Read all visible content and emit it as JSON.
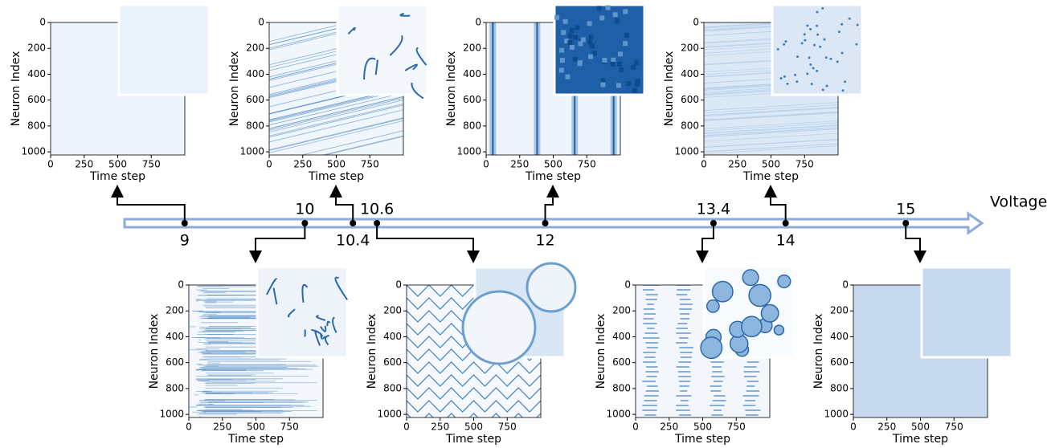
{
  "voltage_axis": {
    "label": "Voltage (V)",
    "xlim": [
      8.5,
      15.62
    ],
    "markers": [
      9,
      10,
      10.4,
      10.6,
      12,
      13.4,
      14,
      15
    ]
  },
  "panels": [
    {
      "xlabel": "Time step",
      "ylabel": "Neuron Index",
      "xlim": [
        0,
        1000
      ],
      "ylim": [
        0,
        1024
      ],
      "xticks": [
        0,
        250,
        500,
        750
      ],
      "yticks": [
        0,
        200,
        400,
        600,
        800,
        1000
      ]
    },
    {
      "xlabel": "Time step",
      "ylabel": "Neuron Index",
      "xlim": [
        0,
        1000
      ],
      "ylim": [
        0,
        1024
      ],
      "xticks": [
        0,
        250,
        500,
        750
      ],
      "yticks": [
        0,
        200,
        400,
        600,
        800,
        1000
      ]
    },
    {
      "xlabel": "Time step",
      "ylabel": "Neuron Index",
      "xlim": [
        0,
        1000
      ],
      "ylim": [
        0,
        1024
      ],
      "xticks": [
        0,
        250,
        500,
        750
      ],
      "yticks": [
        0,
        200,
        400,
        600,
        800,
        1000
      ]
    },
    {
      "xlabel": "Time step",
      "ylabel": "Neuron Index",
      "xlim": [
        0,
        1000
      ],
      "ylim": [
        0,
        1024
      ],
      "xticks": [
        0,
        250,
        500,
        750
      ],
      "yticks": [
        0,
        200,
        400,
        600,
        800,
        1000
      ]
    },
    {
      "xlabel": "Time step",
      "ylabel": "Neuron Index",
      "xlim": [
        0,
        1000
      ],
      "ylim": [
        0,
        1024
      ],
      "xticks": [
        0,
        250,
        500,
        750
      ],
      "yticks": [
        0,
        200,
        400,
        600,
        800,
        1000
      ]
    },
    {
      "xlabel": "Time step",
      "ylabel": "Neuron Index",
      "xlim": [
        0,
        1000
      ],
      "ylim": [
        0,
        1024
      ],
      "xticks": [
        0,
        250,
        500,
        750
      ],
      "yticks": [
        0,
        200,
        400,
        600,
        800,
        1000
      ]
    },
    {
      "xlabel": "Time step",
      "ylabel": "Neuron Index",
      "xlim": [
        0,
        1000
      ],
      "ylim": [
        0,
        1024
      ],
      "xticks": [
        0,
        250,
        500,
        750
      ],
      "yticks": [
        0,
        200,
        400,
        600,
        800,
        1000
      ]
    },
    {
      "xlabel": "Time step",
      "ylabel": "Neuron Index",
      "xlim": [
        0,
        1000
      ],
      "ylim": [
        0,
        1024
      ],
      "xticks": [
        0,
        250,
        500,
        750
      ],
      "yticks": [
        0,
        200,
        400,
        600,
        800,
        1000
      ]
    }
  ]
}
